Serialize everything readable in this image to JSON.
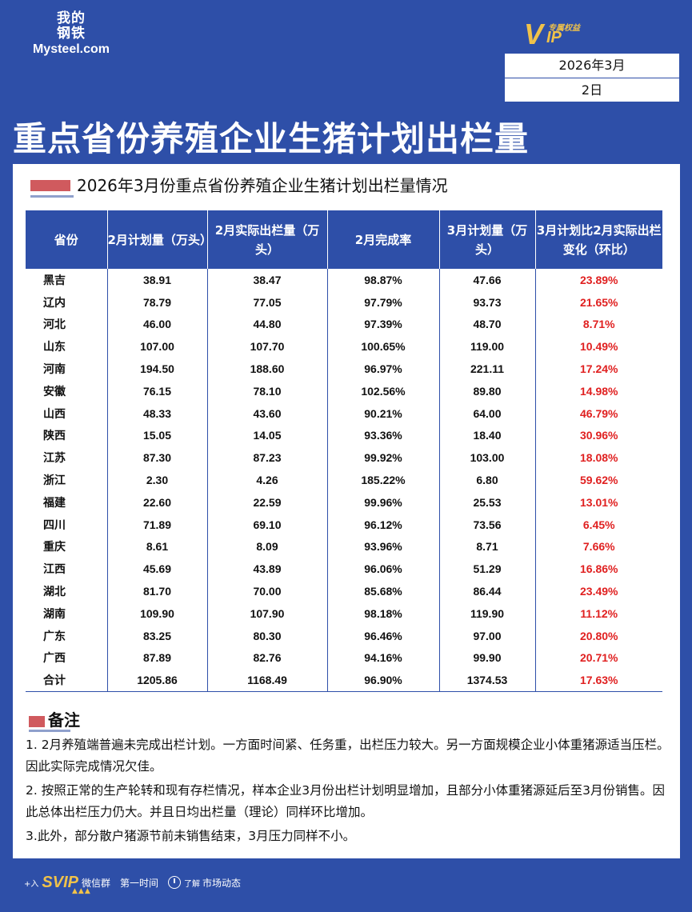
{
  "brand": {
    "logo_cn_top": "我的",
    "logo_cn_bottom": "钢铁",
    "logo_en": "Mysteel.com"
  },
  "vip_badge": {
    "v": "V",
    "ip": "IP",
    "tag": "专属权益"
  },
  "date": {
    "month": "2026年3月",
    "day": "2日"
  },
  "title": "重点省份养殖企业生猪计划出栏量",
  "table_title": "2026年3月份重点省份养殖企业生猪计划出栏量情况",
  "table": {
    "headers": [
      "省份",
      "2月计划量（万头）",
      "2月实际出栏量（万头）",
      "2月完成率",
      "3月计划量（万头）",
      "3月计划比2月实际出栏变化（环比）"
    ],
    "rows": [
      [
        "黑吉",
        "38.91",
        "38.47",
        "98.87%",
        "47.66",
        "23.89%"
      ],
      [
        "辽内",
        "78.79",
        "77.05",
        "97.79%",
        "93.73",
        "21.65%"
      ],
      [
        "河北",
        "46.00",
        "44.80",
        "97.39%",
        "48.70",
        "8.71%"
      ],
      [
        "山东",
        "107.00",
        "107.70",
        "100.65%",
        "119.00",
        "10.49%"
      ],
      [
        "河南",
        "194.50",
        "188.60",
        "96.97%",
        "221.11",
        "17.24%"
      ],
      [
        "安徽",
        "76.15",
        "78.10",
        "102.56%",
        "89.80",
        "14.98%"
      ],
      [
        "山西",
        "48.33",
        "43.60",
        "90.21%",
        "64.00",
        "46.79%"
      ],
      [
        "陕西",
        "15.05",
        "14.05",
        "93.36%",
        "18.40",
        "30.96%"
      ],
      [
        "江苏",
        "87.30",
        "87.23",
        "99.92%",
        "103.00",
        "18.08%"
      ],
      [
        "浙江",
        "2.30",
        "4.26",
        "185.22%",
        "6.80",
        "59.62%"
      ],
      [
        "福建",
        "22.60",
        "22.59",
        "99.96%",
        "25.53",
        "13.01%"
      ],
      [
        "四川",
        "71.89",
        "69.10",
        "96.12%",
        "73.56",
        "6.45%"
      ],
      [
        "重庆",
        "8.61",
        "8.09",
        "93.96%",
        "8.71",
        "7.66%"
      ],
      [
        "江西",
        "45.69",
        "43.89",
        "96.06%",
        "51.29",
        "16.86%"
      ],
      [
        "湖北",
        "81.70",
        "70.00",
        "85.68%",
        "86.44",
        "23.49%"
      ],
      [
        "湖南",
        "109.90",
        "107.90",
        "98.18%",
        "119.90",
        "11.12%"
      ],
      [
        "广东",
        "83.25",
        "80.30",
        "96.46%",
        "97.00",
        "20.80%"
      ],
      [
        "广西",
        "87.89",
        "82.76",
        "94.16%",
        "99.90",
        "20.71%"
      ],
      [
        "合计",
        "1205.86",
        "1168.49",
        "96.90%",
        "1374.53",
        "17.63%"
      ]
    ]
  },
  "notes": {
    "heading": "备注",
    "items": [
      "1. 2月养殖端普遍未完成出栏计划。一方面时间紧、任务重，出栏压力较大。另一方面规模企业小体重猪源适当压栏。因此实际完成情况欠佳。",
      "2. 按照正常的生产轮转和现有存栏情况，样本企业3月份出栏计划明显增加，且部分小体重猪源延后至3月份销售。因此总体出栏压力仍大。并且日均出栏量（理论）同样环比增加。",
      "3.此外，部分散户猪源节前未销售结束，3月压力同样不小。"
    ]
  },
  "footer": {
    "plus": "+入",
    "svip": "SVIP",
    "group": "微信群",
    "first_time": "第一时间",
    "learn": "了解",
    "market": "市场动态",
    "triangles": "▲▲▲"
  },
  "colors": {
    "primary_blue": "#2e4fa8",
    "accent_red": "#e02020",
    "marker_red": "#d05a5e",
    "vip_gold": "#f0c24a"
  }
}
